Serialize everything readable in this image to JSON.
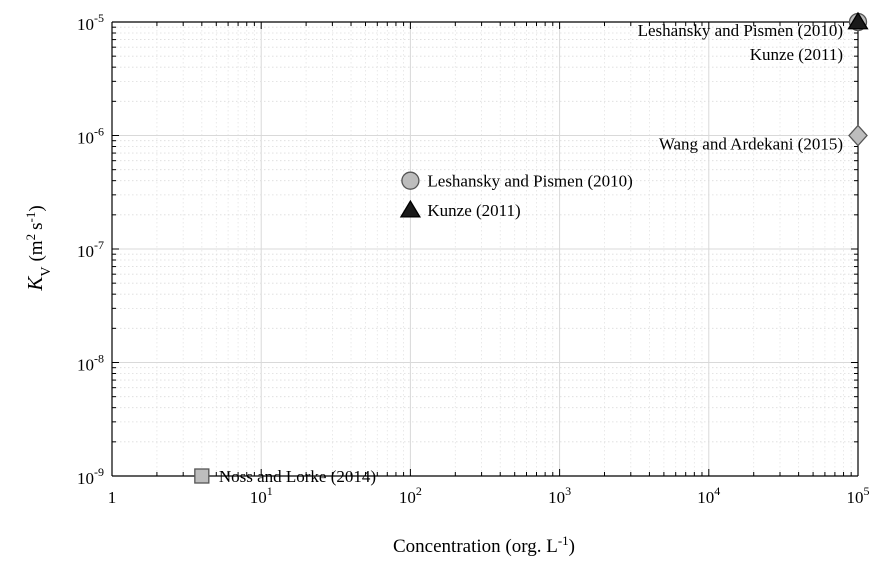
{
  "chart_data": {
    "type": "scatter",
    "title": "",
    "xlabel": {
      "main": "Concentration (org. L",
      "sup": "-1",
      "close": ")"
    },
    "ylabel": {
      "K": "K",
      "sub": "V",
      "units_open": "(m",
      "sup2": "2",
      "s": "s",
      "supm1": "-1",
      "units_close": ")"
    },
    "x_scale": "log",
    "y_scale": "log",
    "xlim": [
      1,
      100000
    ],
    "ylim": [
      1e-09,
      1e-05
    ],
    "grid": true,
    "x_ticks": [
      {
        "value": 1,
        "base": "1",
        "exp": ""
      },
      {
        "value": 10,
        "base": "10",
        "exp": "1"
      },
      {
        "value": 100,
        "base": "10",
        "exp": "2"
      },
      {
        "value": 1000,
        "base": "10",
        "exp": "3"
      },
      {
        "value": 10000,
        "base": "10",
        "exp": "4"
      },
      {
        "value": 100000,
        "base": "10",
        "exp": "5"
      }
    ],
    "y_ticks": [
      {
        "value": 1e-09,
        "base": "10",
        "exp": "-9"
      },
      {
        "value": 1e-08,
        "base": "10",
        "exp": "-8"
      },
      {
        "value": 1e-07,
        "base": "10",
        "exp": "-7"
      },
      {
        "value": 1e-06,
        "base": "10",
        "exp": "-6"
      },
      {
        "value": 1e-05,
        "base": "10",
        "exp": "-5"
      }
    ],
    "points": [
      {
        "x": 100,
        "y": 4e-07,
        "marker": "circle",
        "color": "#bdbdbd",
        "label": "Leshansky and Pismen (2010)",
        "label_side": "right"
      },
      {
        "x": 100,
        "y": 2.2e-07,
        "marker": "triangle",
        "color": "#1a1a1a",
        "label": "Kunze (2011)",
        "label_side": "right"
      },
      {
        "x": 4,
        "y": 1e-09,
        "marker": "square",
        "color": "#bdbdbd",
        "label": "Noss and Lorke (2014)",
        "label_side": "right"
      },
      {
        "x": 100000,
        "y": 1e-06,
        "marker": "diamond",
        "color": "#bdbdbd",
        "label": "Wang and Ardekani (2015)",
        "label_side": "left"
      },
      {
        "x": 100000,
        "y": 1e-05,
        "marker": "circle",
        "color": "#bdbdbd",
        "label": "Leshansky and Pismen (2010)",
        "label_side": "left"
      },
      {
        "x": 100000,
        "y": 1e-05,
        "marker": "triangle",
        "color": "#1a1a1a",
        "label": "Kunze (2011)",
        "label_side": "left"
      }
    ]
  }
}
